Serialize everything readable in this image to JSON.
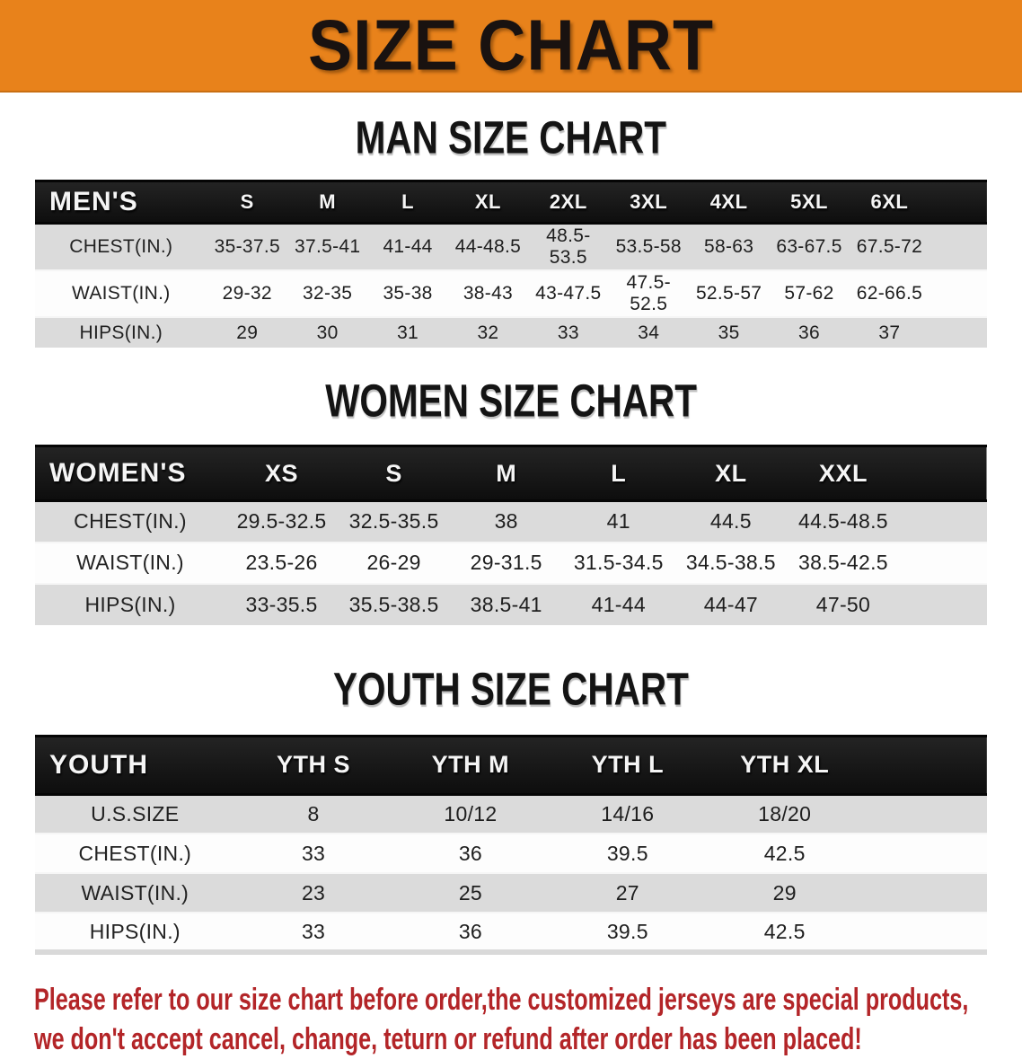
{
  "banner": {
    "title": "SIZE CHART",
    "bg_color": "#e8821b",
    "text_color": "#191210"
  },
  "sections": [
    {
      "heading": "MAN SIZE CHART",
      "header_label": "MEN'S",
      "columns": [
        "S",
        "M",
        "L",
        "XL",
        "2XL",
        "3XL",
        "4XL",
        "5XL",
        "6XL"
      ],
      "rows": [
        {
          "label": "CHEST(IN.)",
          "values": [
            "35-37.5",
            "37.5-41",
            "41-44",
            "44-48.5",
            "48.5-53.5",
            "53.5-58",
            "58-63",
            "63-67.5",
            "67.5-72"
          ]
        },
        {
          "label": "WAIST(IN.)",
          "values": [
            "29-32",
            "32-35",
            "35-38",
            "38-43",
            "43-47.5",
            "47.5-52.5",
            "52.5-57",
            "57-62",
            "62-66.5"
          ]
        },
        {
          "label": "HIPS(IN.)",
          "values": [
            "29",
            "30",
            "31",
            "32",
            "33",
            "34",
            "35",
            "36",
            "37"
          ]
        }
      ]
    },
    {
      "heading": "WOMEN SIZE CHART",
      "header_label": "WOMEN'S",
      "columns": [
        "XS",
        "S",
        "M",
        "L",
        "XL",
        "XXL"
      ],
      "rows": [
        {
          "label": "CHEST(IN.)",
          "values": [
            "29.5-32.5",
            "32.5-35.5",
            "38",
            "41",
            "44.5",
            "44.5-48.5"
          ]
        },
        {
          "label": "WAIST(IN.)",
          "values": [
            "23.5-26",
            "26-29",
            "29-31.5",
            "31.5-34.5",
            "34.5-38.5",
            "38.5-42.5"
          ]
        },
        {
          "label": "HIPS(IN.)",
          "values": [
            "33-35.5",
            "35.5-38.5",
            "38.5-41",
            "41-44",
            "44-47",
            "47-50"
          ]
        }
      ]
    },
    {
      "heading": "YOUTH SIZE CHART",
      "header_label": "YOUTH",
      "columns": [
        "YTH S",
        "YTH M",
        "YTH L",
        "YTH XL"
      ],
      "rows": [
        {
          "label": "U.S.SIZE",
          "values": [
            "8",
            "10/12",
            "14/16",
            "18/20"
          ]
        },
        {
          "label": "CHEST(IN.)",
          "values": [
            "33",
            "36",
            "39.5",
            "42.5"
          ]
        },
        {
          "label": "WAIST(IN.)",
          "values": [
            "23",
            "25",
            "27",
            "29"
          ]
        },
        {
          "label": "HIPS(IN.)",
          "values": [
            "33",
            "36",
            "39.5",
            "42.5"
          ]
        }
      ]
    }
  ],
  "disclaimer": {
    "line1": "Please refer to our size chart before order,the customized jerseys are special products,",
    "line2": "we don't accept cancel, change, teturn or refund after order has been placed!",
    "color": "#b32528"
  }
}
